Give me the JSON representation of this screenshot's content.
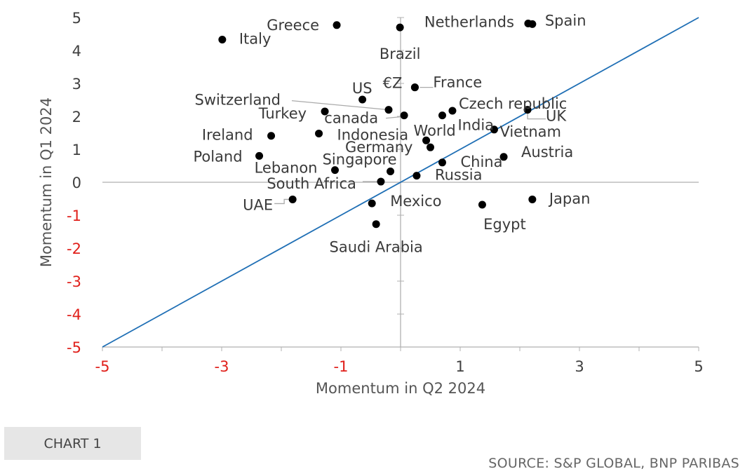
{
  "chart_data": {
    "type": "scatter",
    "xlabel": "Momentum in Q2 2024",
    "ylabel": "Momentum in Q1 2024",
    "xlim": [
      -5,
      5
    ],
    "ylim": [
      -5,
      5
    ],
    "x_ticks": [
      -5,
      -3,
      -1,
      1,
      3,
      5
    ],
    "y_ticks": [
      5,
      4,
      3,
      2,
      1,
      0,
      -1,
      -2,
      -3,
      -4,
      -5
    ],
    "reference_line": "y = x",
    "grid": false,
    "colors": {
      "points": "#000000",
      "diagonal": "#1f6fb5",
      "axes": "#b0b0b0",
      "negative_ticks": "#e0201b",
      "positive_ticks": "#404040"
    },
    "points": [
      {
        "label": "Greece",
        "x": -1.07,
        "y": 4.77
      },
      {
        "label": "Brazil",
        "x": -0.01,
        "y": 4.7
      },
      {
        "label": "Netherlands",
        "x": 2.14,
        "y": 4.82
      },
      {
        "label": "Spain",
        "x": 2.21,
        "y": 4.8
      },
      {
        "label": "Italy",
        "x": -2.99,
        "y": 4.33
      },
      {
        "label": "€Z",
        "x": 0.24,
        "y": 2.88
      },
      {
        "label": "France",
        "x": 0.24,
        "y": 2.88
      },
      {
        "label": "US",
        "x": -0.64,
        "y": 2.51
      },
      {
        "label": "Switzerland",
        "x": -0.2,
        "y": 2.2
      },
      {
        "label": "Turkey",
        "x": -1.27,
        "y": 2.15
      },
      {
        "label": "canada",
        "x": 0.06,
        "y": 2.03
      },
      {
        "label": "Czech republic",
        "x": 0.87,
        "y": 2.17
      },
      {
        "label": "UK",
        "x": 2.13,
        "y": 2.2
      },
      {
        "label": "Ireland",
        "x": -2.17,
        "y": 1.41
      },
      {
        "label": "Indonesia",
        "x": -1.37,
        "y": 1.48
      },
      {
        "label": "World",
        "x": 0.43,
        "y": 1.27
      },
      {
        "label": "India",
        "x": 0.7,
        "y": 2.03
      },
      {
        "label": "Vietnam",
        "x": 1.57,
        "y": 1.6
      },
      {
        "label": "Germany",
        "x": 0.5,
        "y": 1.06
      },
      {
        "label": "Poland",
        "x": -2.37,
        "y": 0.8
      },
      {
        "label": "Austria",
        "x": 1.73,
        "y": 0.77
      },
      {
        "label": "Lebanon",
        "x": -1.1,
        "y": 0.37
      },
      {
        "label": "Singapore",
        "x": -0.17,
        "y": 0.33
      },
      {
        "label": "China",
        "x": 0.7,
        "y": 0.6
      },
      {
        "label": "Russia",
        "x": 0.27,
        "y": 0.2
      },
      {
        "label": "South Africa",
        "x": -0.33,
        "y": 0.02
      },
      {
        "label": "UAE",
        "x": -1.81,
        "y": -0.52
      },
      {
        "label": "Mexico",
        "x": -0.48,
        "y": -0.64
      },
      {
        "label": "Japan",
        "x": 2.21,
        "y": -0.52
      },
      {
        "label": "Egypt",
        "x": 1.37,
        "y": -0.68
      },
      {
        "label": "Saudi Arabia",
        "x": -0.41,
        "y": -1.27
      }
    ]
  },
  "footer": {
    "chart_tag": "CHART 1",
    "source": "SOURCE: S&P GLOBAL, BNP PARIBAS"
  }
}
